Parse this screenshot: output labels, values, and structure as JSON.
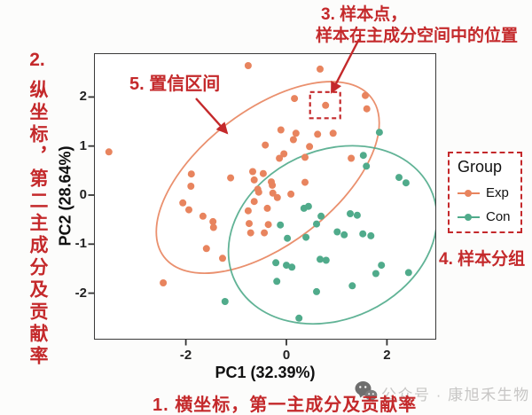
{
  "annotations": {
    "note1": "1. 横坐标，第一主成分及贡献率",
    "note2_number": "2.",
    "note2_vertical": "纵坐标，第二主成分及贡献率",
    "note3_line1": "3. 样本点，",
    "note3_line2": "样本在主成分空间中的位置",
    "note4": "4. 样本分组",
    "note5": "5. 置信区间",
    "annotation_color": "#c4292b"
  },
  "watermark": {
    "label": "公众号 · 康旭禾生物"
  },
  "chart_data": {
    "type": "scatter",
    "title": "",
    "xlabel": "PC1 (32.39%)",
    "ylabel": "PC2 (28.64%)",
    "xlim": [
      -3.85,
      2.95
    ],
    "ylim": [
      -2.9,
      2.9
    ],
    "x_ticks": [
      -2,
      0,
      2
    ],
    "y_ticks": [
      2,
      1,
      0,
      -1,
      -2
    ],
    "grid": false,
    "legend": {
      "title": "Group",
      "position": "right",
      "entries": [
        {
          "label": "Exp",
          "color": "#e8845e"
        },
        {
          "label": "Con",
          "color": "#50ab8b"
        }
      ]
    },
    "series": [
      {
        "name": "Exp",
        "color": "#e8845e",
        "confidence_ellipse": {
          "cx": -0.37,
          "cy": 0.36,
          "a": 2.6,
          "b": 1.37,
          "angle_deg": 37.5
        },
        "points": [
          [
            -0.76,
            2.64
          ],
          [
            0.67,
            2.57
          ],
          [
            0.16,
            1.97
          ],
          [
            0.78,
            1.83
          ],
          [
            1.57,
            2.03
          ],
          [
            1.6,
            1.76
          ],
          [
            -3.53,
            0.88
          ],
          [
            -0.11,
            1.33
          ],
          [
            0.19,
            1.26
          ],
          [
            0.14,
            1.13
          ],
          [
            0.62,
            1.24
          ],
          [
            0.93,
            1.26
          ],
          [
            0.46,
            0.99
          ],
          [
            -0.42,
            1.02
          ],
          [
            -0.05,
            0.84
          ],
          [
            -0.14,
            0.75
          ],
          [
            0.37,
            0.77
          ],
          [
            1.29,
            0.75
          ],
          [
            -0.67,
            0.48
          ],
          [
            -0.46,
            0.44
          ],
          [
            -0.64,
            0.31
          ],
          [
            -0.3,
            0.27
          ],
          [
            -0.57,
            0.12
          ],
          [
            -0.55,
            0.06
          ],
          [
            -0.28,
            0.2
          ],
          [
            -0.27,
            0.04
          ],
          [
            0.09,
            0.02
          ],
          [
            0.37,
            0.26
          ],
          [
            -0.18,
            -0.05
          ],
          [
            -0.64,
            -0.13
          ],
          [
            -1.11,
            0.35
          ],
          [
            -1.89,
            0.43
          ],
          [
            -1.9,
            0.18
          ],
          [
            -2.06,
            -0.16
          ],
          [
            -1.94,
            -0.3
          ],
          [
            -1.66,
            -0.43
          ],
          [
            -1.46,
            -0.54
          ],
          [
            -1.45,
            -0.66
          ],
          [
            -0.76,
            -0.32
          ],
          [
            -0.38,
            -0.27
          ],
          [
            -0.74,
            -0.58
          ],
          [
            -0.36,
            -0.6
          ],
          [
            -0.71,
            -0.77
          ],
          [
            -0.44,
            -0.77
          ],
          [
            -1.59,
            -1.09
          ],
          [
            -2.45,
            -1.79
          ],
          [
            -1.27,
            -1.29
          ]
        ]
      },
      {
        "name": "Con",
        "color": "#50ab8b",
        "confidence_ellipse": {
          "cx": 0.92,
          "cy": -0.81,
          "a": 2.15,
          "b": 1.72,
          "angle_deg": 25
        },
        "points": [
          [
            1.85,
            1.28
          ],
          [
            1.53,
            0.81
          ],
          [
            1.59,
            0.59
          ],
          [
            2.24,
            0.36
          ],
          [
            2.38,
            0.25
          ],
          [
            0.35,
            -0.27
          ],
          [
            0.44,
            -0.23
          ],
          [
            0.69,
            -0.43
          ],
          [
            1.27,
            -0.38
          ],
          [
            1.41,
            -0.41
          ],
          [
            -0.12,
            -0.61
          ],
          [
            0.6,
            -0.59
          ],
          [
            1.01,
            -0.75
          ],
          [
            1.15,
            -0.81
          ],
          [
            1.52,
            -0.79
          ],
          [
            1.68,
            -0.83
          ],
          [
            0.02,
            -0.88
          ],
          [
            0.39,
            -0.86
          ],
          [
            -0.21,
            -1.38
          ],
          [
            0.0,
            -1.43
          ],
          [
            0.11,
            -1.47
          ],
          [
            0.67,
            -1.31
          ],
          [
            0.79,
            -1.33
          ],
          [
            -0.19,
            -1.76
          ],
          [
            1.89,
            -1.43
          ],
          [
            1.78,
            -1.6
          ],
          [
            1.31,
            -1.85
          ],
          [
            0.6,
            -1.97
          ],
          [
            0.25,
            -2.51
          ],
          [
            -1.22,
            -2.17
          ],
          [
            2.43,
            -1.58
          ]
        ]
      }
    ],
    "highlighted_point": {
      "series": "Exp",
      "x": 0.78,
      "y": 1.83
    }
  }
}
